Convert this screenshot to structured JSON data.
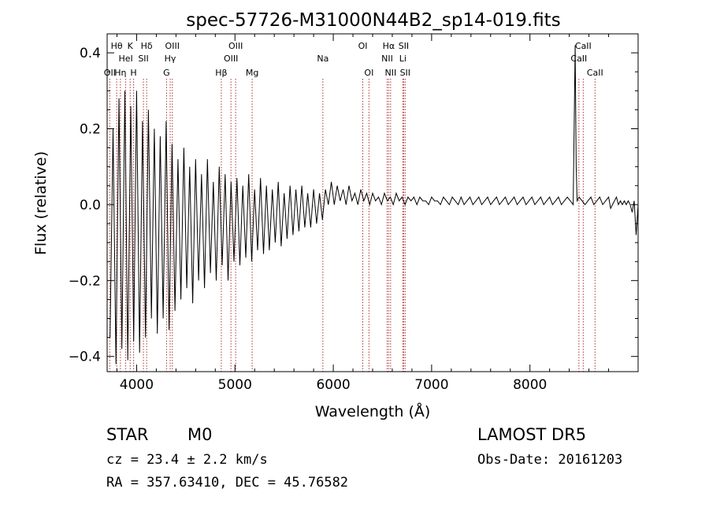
{
  "chart_data": {
    "type": "line",
    "title": "spec-57726-M31000N44B2_sp14-019.fits",
    "xlabel": "Wavelength (Å)",
    "ylabel": "Flux (relative)",
    "xlim": [
      3700,
      9100
    ],
    "ylim": [
      -0.44,
      0.45
    ],
    "x_ticks": [
      4000,
      5000,
      6000,
      7000,
      8000
    ],
    "y_ticks": [
      -0.4,
      -0.2,
      0.0,
      0.2,
      0.4
    ],
    "y_tick_labels": [
      "−0.4",
      "−0.2",
      "0.0",
      "0.2",
      "0.4"
    ],
    "grid": false,
    "line_color": "#000000",
    "marker_color": "#b03030",
    "series": [
      {
        "x": [
          3730,
          3760,
          3790,
          3820,
          3850,
          3880,
          3910,
          3940,
          3970,
          4000,
          4030,
          4060,
          4090,
          4120,
          4150,
          4180,
          4210,
          4240,
          4270,
          4300,
          4330,
          4360,
          4390,
          4420,
          4450,
          4480,
          4510,
          4540,
          4570,
          4600,
          4630,
          4660,
          4690,
          4720,
          4750,
          4780,
          4810,
          4840,
          4870,
          4900,
          4930,
          4960,
          4990,
          5020,
          5050,
          5080,
          5110,
          5140,
          5170,
          5200,
          5230,
          5260,
          5290,
          5320,
          5350,
          5380,
          5410,
          5440,
          5470,
          5500,
          5530,
          5560,
          5590,
          5620,
          5650,
          5680,
          5710,
          5740,
          5770,
          5800,
          5830,
          5860,
          5890,
          5920,
          5950,
          5980,
          6010,
          6040,
          6070,
          6100,
          6130,
          6160,
          6190,
          6220,
          6250,
          6280,
          6310,
          6340,
          6370,
          6400,
          6430,
          6460,
          6490,
          6520,
          6550,
          6580,
          6610,
          6640,
          6670,
          6700,
          6730,
          6760,
          6790,
          6820,
          6850,
          6880,
          6910,
          6940,
          6970,
          7000,
          7030,
          7060,
          7090,
          7120,
          7150,
          7180,
          7210,
          7240,
          7270,
          7300,
          7330,
          7360,
          7390,
          7420,
          7450,
          7480,
          7510,
          7540,
          7570,
          7600,
          7630,
          7660,
          7690,
          7720,
          7750,
          7780,
          7810,
          7840,
          7870,
          7900,
          7930,
          7960,
          7990,
          8020,
          8050,
          8080,
          8110,
          8140,
          8170,
          8200,
          8230,
          8260,
          8290,
          8320,
          8350,
          8380,
          8410,
          8440,
          8460,
          8470,
          8480,
          8500,
          8530,
          8560,
          8590,
          8620,
          8650,
          8680,
          8710,
          8740,
          8770,
          8800,
          8820,
          8840,
          8860,
          8880,
          8900,
          8920,
          8940,
          8960,
          8980,
          9000,
          9020,
          9040,
          9060,
          9080,
          9100
        ],
        "y": [
          -0.35,
          0.2,
          -0.42,
          0.28,
          -0.38,
          0.3,
          -0.41,
          0.26,
          -0.36,
          0.3,
          -0.39,
          0.22,
          -0.35,
          0.25,
          -0.3,
          0.2,
          -0.34,
          0.18,
          -0.3,
          0.22,
          -0.33,
          0.16,
          -0.28,
          0.12,
          -0.25,
          0.15,
          -0.22,
          0.1,
          -0.26,
          0.12,
          -0.2,
          0.08,
          -0.22,
          0.12,
          -0.18,
          0.06,
          -0.2,
          0.1,
          -0.16,
          0.08,
          -0.2,
          0.06,
          -0.15,
          0.07,
          -0.16,
          0.05,
          -0.14,
          0.08,
          -0.15,
          0.04,
          -0.12,
          0.07,
          -0.13,
          0.05,
          -0.12,
          0.04,
          -0.1,
          0.06,
          -0.11,
          0.03,
          -0.09,
          0.05,
          -0.08,
          0.04,
          -0.07,
          0.05,
          -0.06,
          0.03,
          -0.06,
          0.04,
          -0.05,
          0.03,
          -0.04,
          0.04,
          0.0,
          0.06,
          0.0,
          0.05,
          0.01,
          0.04,
          0.0,
          0.05,
          0.01,
          0.03,
          0.0,
          0.04,
          0.01,
          0.03,
          0.0,
          0.03,
          0.01,
          0.02,
          0.0,
          0.03,
          0.01,
          0.02,
          0.0,
          0.03,
          0.01,
          0.02,
          0.0,
          0.02,
          0.01,
          0.02,
          0.0,
          0.02,
          0.01,
          0.01,
          0.0,
          0.02,
          0.01,
          0.01,
          0.0,
          0.02,
          0.01,
          0.0,
          0.02,
          0.01,
          0.0,
          0.02,
          0.0,
          0.01,
          0.02,
          0.0,
          0.01,
          0.02,
          0.0,
          0.01,
          0.02,
          0.0,
          0.01,
          0.02,
          0.0,
          0.01,
          0.02,
          0.0,
          0.01,
          0.02,
          0.0,
          0.01,
          0.02,
          0.0,
          0.01,
          0.02,
          0.0,
          0.01,
          0.02,
          0.0,
          0.01,
          0.02,
          0.0,
          0.01,
          0.02,
          0.0,
          0.01,
          0.02,
          0.01,
          0.0,
          0.42,
          0.1,
          0.01,
          0.02,
          0.01,
          0.0,
          0.01,
          0.02,
          0.0,
          0.01,
          0.02,
          0.0,
          0.01,
          0.02,
          -0.01,
          0.0,
          0.01,
          0.02,
          0.0,
          0.01,
          0.0,
          0.01,
          0.0,
          0.01,
          0.0,
          -0.02,
          0.01,
          -0.08,
          0.0
        ]
      }
    ],
    "lines": [
      {
        "x": 3727,
        "rows": [
          "",
          "",
          "OII"
        ]
      },
      {
        "x": 3797,
        "rows": [
          "Hθ",
          "",
          ""
        ]
      },
      {
        "x": 3835,
        "rows": [
          "",
          "",
          "Hη"
        ]
      },
      {
        "x": 3889,
        "rows": [
          "",
          "HeI",
          ""
        ]
      },
      {
        "x": 3934,
        "rows": [
          "K",
          "",
          ""
        ]
      },
      {
        "x": 3969,
        "rows": [
          "",
          "",
          "H"
        ]
      },
      {
        "x": 4069,
        "rows": [
          "",
          "SII",
          ""
        ]
      },
      {
        "x": 4102,
        "rows": [
          "Hδ",
          "",
          ""
        ]
      },
      {
        "x": 4304,
        "rows": [
          "",
          "",
          "G"
        ]
      },
      {
        "x": 4341,
        "rows": [
          "",
          "Hγ",
          ""
        ]
      },
      {
        "x": 4363,
        "rows": [
          "OIII",
          "",
          ""
        ]
      },
      {
        "x": 4861,
        "rows": [
          "",
          "",
          "Hβ"
        ]
      },
      {
        "x": 4959,
        "rows": [
          "",
          "OIII",
          ""
        ]
      },
      {
        "x": 5007,
        "rows": [
          "OIII",
          "",
          ""
        ]
      },
      {
        "x": 5175,
        "rows": [
          "",
          "",
          "Mg"
        ]
      },
      {
        "x": 5894,
        "rows": [
          "",
          "Na",
          ""
        ]
      },
      {
        "x": 6300,
        "rows": [
          "OI",
          "",
          ""
        ]
      },
      {
        "x": 6363,
        "rows": [
          "",
          "",
          "OI"
        ]
      },
      {
        "x": 6548,
        "rows": [
          "",
          "NII",
          ""
        ]
      },
      {
        "x": 6563,
        "rows": [
          "Hα",
          "",
          ""
        ]
      },
      {
        "x": 6583,
        "rows": [
          "",
          "",
          "NII"
        ]
      },
      {
        "x": 6707,
        "rows": [
          "",
          "Li",
          ""
        ]
      },
      {
        "x": 6716,
        "rows": [
          "SII",
          "",
          ""
        ]
      },
      {
        "x": 6731,
        "rows": [
          "",
          "",
          "SII"
        ]
      },
      {
        "x": 8498,
        "rows": [
          "",
          "CaII",
          ""
        ]
      },
      {
        "x": 8542,
        "rows": [
          "CaII",
          "",
          ""
        ]
      },
      {
        "x": 8662,
        "rows": [
          "",
          "",
          "CaII"
        ]
      }
    ]
  },
  "info": {
    "class_label": "STAR",
    "subclass_label": "M0",
    "survey_label": "LAMOST DR5",
    "cz_text": "cz = 23.4 ± 2.2 km/s",
    "obs_date_text": "Obs-Date: 20161203",
    "coords_text": "RA = 357.63410, DEC =  45.76582"
  }
}
